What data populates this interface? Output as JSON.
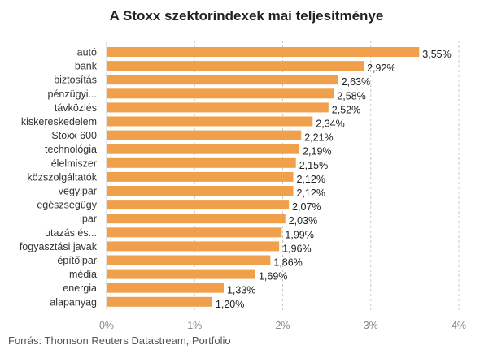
{
  "chart_data": {
    "type": "bar",
    "orientation": "horizontal",
    "title": "A Stoxx szektorindexek mai teljesítménye",
    "categories": [
      "autó",
      "bank",
      "biztosítás",
      "pénzügyi...",
      "távközlés",
      "kiskereskedelem",
      "Stoxx 600",
      "technológia",
      "élelmiszer",
      "közszolgáltatók",
      "vegyipar",
      "egészségügy",
      "ipar",
      "utazás és...",
      "fogyasztási javak",
      "építőipar",
      "média",
      "energia",
      "alapanyag"
    ],
    "values": [
      3.55,
      2.92,
      2.63,
      2.58,
      2.52,
      2.34,
      2.21,
      2.19,
      2.15,
      2.12,
      2.12,
      2.07,
      2.03,
      1.99,
      1.96,
      1.86,
      1.69,
      1.33,
      1.2
    ],
    "value_labels": [
      "3,55%",
      "2,92%",
      "2,63%",
      "2,58%",
      "2,52%",
      "2,34%",
      "2,21%",
      "2,19%",
      "2,15%",
      "2,12%",
      "2,12%",
      "2,07%",
      "2,03%",
      "1,99%",
      "1,96%",
      "1,86%",
      "1,69%",
      "1,33%",
      "1,20%"
    ],
    "xlim": [
      0,
      4
    ],
    "x_ticks": [
      0,
      1,
      2,
      3,
      4
    ],
    "x_tick_labels": [
      "0%",
      "1%",
      "2%",
      "3%",
      "4%"
    ],
    "grid": "vertical-dashed",
    "bar_color": "#f0a04b",
    "source": "Forrás: Thomson Reuters  Datastream, Portfolio"
  }
}
